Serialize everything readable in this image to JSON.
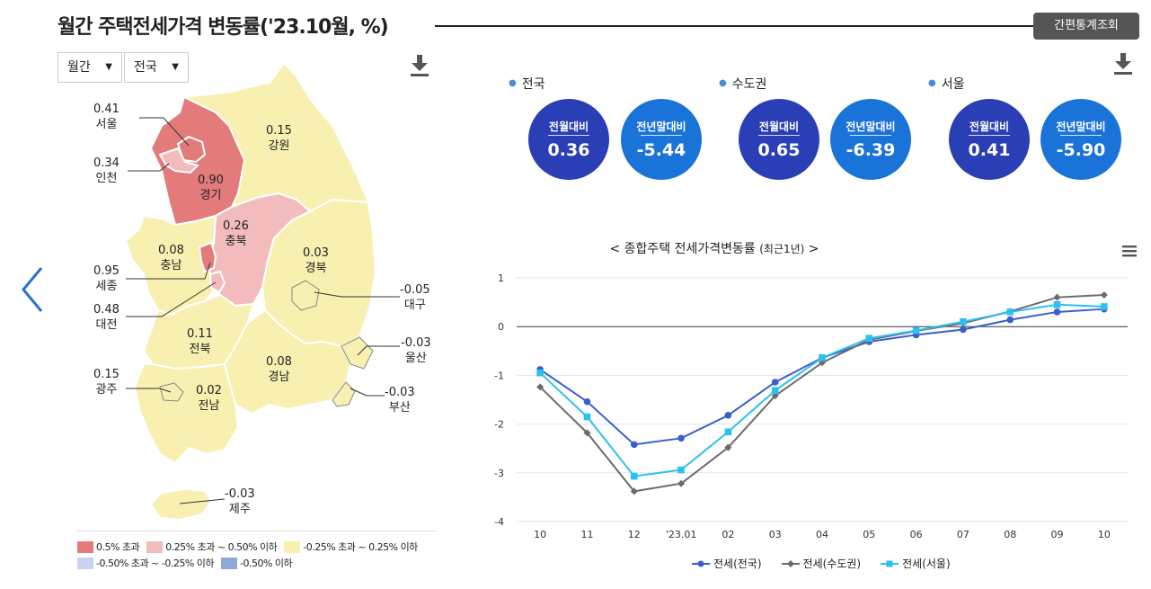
{
  "header": {
    "title": "월간 주택전세가격 변동률('23.10월, %)",
    "quick_button": "간편통계조회"
  },
  "filters": {
    "period": "월간",
    "region": "전국"
  },
  "map": {
    "regions": [
      {
        "key": "seoul",
        "name": "서울",
        "value": "0.41",
        "category": "0.5% 이하 초과 0.25%"
      },
      {
        "key": "incheon",
        "name": "인천",
        "value": "0.34"
      },
      {
        "key": "gyeonggi",
        "name": "경기",
        "value": "0.90"
      },
      {
        "key": "gangwon",
        "name": "강원",
        "value": "0.15"
      },
      {
        "key": "chungbuk",
        "name": "충북",
        "value": "0.26"
      },
      {
        "key": "chungnam",
        "name": "충남",
        "value": "0.08"
      },
      {
        "key": "sejong",
        "name": "세종",
        "value": "0.95"
      },
      {
        "key": "daejeon",
        "name": "대전",
        "value": "0.48"
      },
      {
        "key": "gyeongbuk",
        "name": "경북",
        "value": "0.03"
      },
      {
        "key": "daegu",
        "name": "대구",
        "value": "-0.05"
      },
      {
        "key": "jeonbuk",
        "name": "전북",
        "value": "0.11"
      },
      {
        "key": "gyeongnam",
        "name": "경남",
        "value": "0.08"
      },
      {
        "key": "ulsan",
        "name": "울산",
        "value": "-0.03"
      },
      {
        "key": "gwangju",
        "name": "광주",
        "value": "0.15"
      },
      {
        "key": "jeonnam",
        "name": "전남",
        "value": "0.02"
      },
      {
        "key": "busan",
        "name": "부산",
        "value": "-0.03"
      },
      {
        "key": "jeju",
        "name": "제주",
        "value": "-0.03"
      }
    ],
    "legend": [
      {
        "label": "0.5% 초과",
        "color": "#e37b7b"
      },
      {
        "label": "0.25% 초과 ~ 0.50% 이하",
        "color": "#f2bcbc"
      },
      {
        "label": "-0.25% 초과 ~ 0.25% 이하",
        "color": "#f7f0b0"
      },
      {
        "label": "-0.50% 초과 ~ -0.25% 이하",
        "color": "#c9d3ee"
      },
      {
        "label": "-0.50% 이하",
        "color": "#8fa8d8"
      }
    ]
  },
  "summary": [
    {
      "region": "전국",
      "mom_label": "전월대비",
      "mom": "0.36",
      "ytd_label": "전년말대비",
      "ytd": "-5.44"
    },
    {
      "region": "수도권",
      "mom_label": "전월대비",
      "mom": "0.65",
      "ytd_label": "전년말대비",
      "ytd": "-6.39"
    },
    {
      "region": "서울",
      "mom_label": "전월대비",
      "mom": "0.41",
      "ytd_label": "전년말대비",
      "ytd": "-5.90"
    }
  ],
  "chart_title": {
    "main": "< 종합주택 전세가격변동률 ",
    "sub": "(최근1년)",
    "end": " >"
  },
  "chart_data": {
    "type": "line",
    "categories": [
      "10",
      "11",
      "12",
      "'23.01",
      "02",
      "03",
      "04",
      "05",
      "06",
      "07",
      "08",
      "09",
      "10"
    ],
    "ylim": [
      -4,
      1
    ],
    "yticks": [
      1,
      0,
      -1,
      -2,
      -3,
      -4
    ],
    "grid": true,
    "legend_position": "bottom",
    "series": [
      {
        "name": "전세(전국)",
        "color": "#3a5fcd",
        "marker": "circle",
        "values": [
          -0.88,
          -1.54,
          -2.42,
          -2.29,
          -1.82,
          -1.14,
          -0.64,
          -0.31,
          -0.17,
          -0.06,
          0.14,
          0.3,
          0.36
        ]
      },
      {
        "name": "전세(수도권)",
        "color": "#6b6b6b",
        "marker": "diamond",
        "values": [
          -1.24,
          -2.18,
          -3.38,
          -3.22,
          -2.48,
          -1.42,
          -0.74,
          -0.27,
          -0.09,
          0.07,
          0.31,
          0.6,
          0.65
        ]
      },
      {
        "name": "전세(서울)",
        "color": "#2cc0f0",
        "marker": "square",
        "values": [
          -0.95,
          -1.85,
          -3.07,
          -2.94,
          -2.16,
          -1.31,
          -0.64,
          -0.24,
          -0.08,
          0.1,
          0.3,
          0.45,
          0.41
        ]
      }
    ]
  }
}
